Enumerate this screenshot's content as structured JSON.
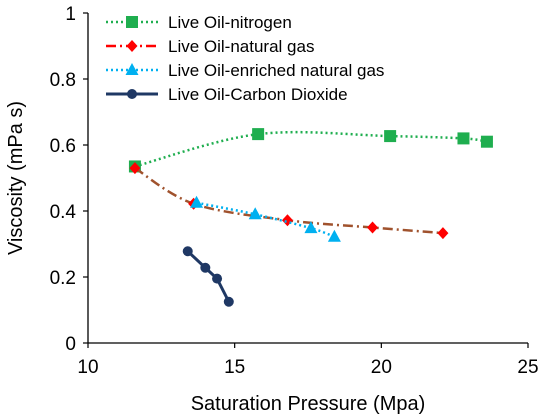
{
  "chart_data": {
    "type": "scatter",
    "title": "",
    "xlabel": "Saturation Pressure (Mpa)",
    "ylabel": "Viscosity (mPa s)",
    "xlim": [
      10,
      25
    ],
    "ylim": [
      0,
      1
    ],
    "x_ticks": [
      "10",
      "15",
      "20",
      "25"
    ],
    "y_ticks": [
      "0",
      "0.2",
      "0.4",
      "0.6",
      "0.8",
      "1"
    ],
    "grid": false,
    "legend_position": "top-left",
    "series": [
      {
        "name": "Live Oil-nitrogen",
        "color": "#1fae4f",
        "line_style": "dotted",
        "marker": "square",
        "smooth": true,
        "points": [
          [
            11.6,
            0.535
          ],
          [
            15.8,
            0.633
          ],
          [
            20.3,
            0.627
          ],
          [
            22.8,
            0.62
          ],
          [
            23.6,
            0.61
          ]
        ]
      },
      {
        "name": "Live Oil-natural gas",
        "color": "#ff0000",
        "trend_color": "#a0522d",
        "line_style": "dashdot",
        "marker": "diamond",
        "smooth": true,
        "points": [
          [
            11.6,
            0.53
          ],
          [
            13.6,
            0.422
          ],
          [
            16.8,
            0.372
          ],
          [
            19.7,
            0.35
          ],
          [
            22.1,
            0.333
          ]
        ]
      },
      {
        "name": "Live Oil-enriched natural gas",
        "color": "#00b0f0",
        "line_style": "dotted",
        "marker": "triangle",
        "smooth": true,
        "points": [
          [
            13.7,
            0.425
          ],
          [
            15.7,
            0.39
          ],
          [
            17.6,
            0.348
          ],
          [
            18.4,
            0.322
          ]
        ]
      },
      {
        "name": "Live Oil-Carbon Dioxide",
        "color": "#1f3864",
        "line_style": "solid",
        "marker": "circle",
        "smooth": false,
        "points": [
          [
            13.4,
            0.278
          ],
          [
            14.0,
            0.228
          ],
          [
            14.4,
            0.195
          ],
          [
            14.8,
            0.125
          ]
        ]
      }
    ]
  }
}
